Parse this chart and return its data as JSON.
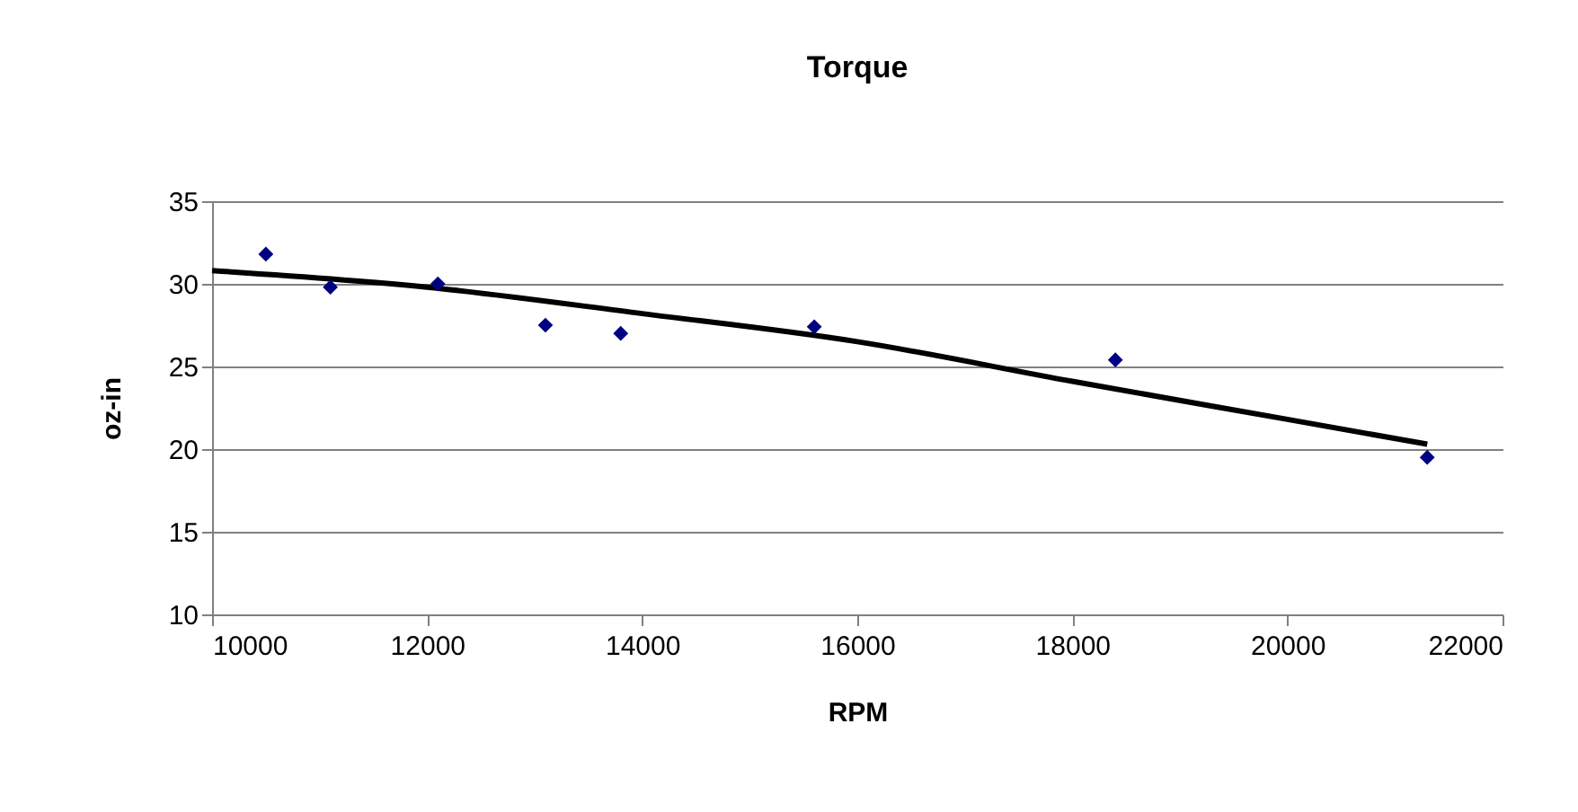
{
  "chart_data": {
    "type": "scatter",
    "title": "Torque",
    "xlabel": "RPM",
    "ylabel": "oz-in",
    "series": [
      {
        "color": "#000080",
        "marker": "diamond",
        "x": [
          10500,
          11100,
          12100,
          13100,
          13800,
          15600,
          18400,
          21300
        ],
        "values": [
          31.8,
          29.8,
          30.0,
          27.5,
          27.0,
          27.4,
          25.4,
          19.5
        ]
      },
      {
        "type": "line",
        "color": "#000000",
        "marker": "none",
        "line_style": "solid",
        "x": [
          10000,
          12000,
          14000,
          16000,
          18000,
          20000,
          21300
        ],
        "values": [
          30.8,
          29.8,
          28.2,
          26.5,
          24.1,
          21.8,
          20.3
        ]
      }
    ],
    "xlim": [
      10000,
      22000
    ],
    "xticks": [
      10000,
      12000,
      14000,
      16000,
      18000,
      20000,
      22000
    ],
    "ylim": [
      10,
      35
    ],
    "yticks": [
      10,
      15,
      20,
      25,
      30,
      35
    ],
    "grid": "y"
  }
}
